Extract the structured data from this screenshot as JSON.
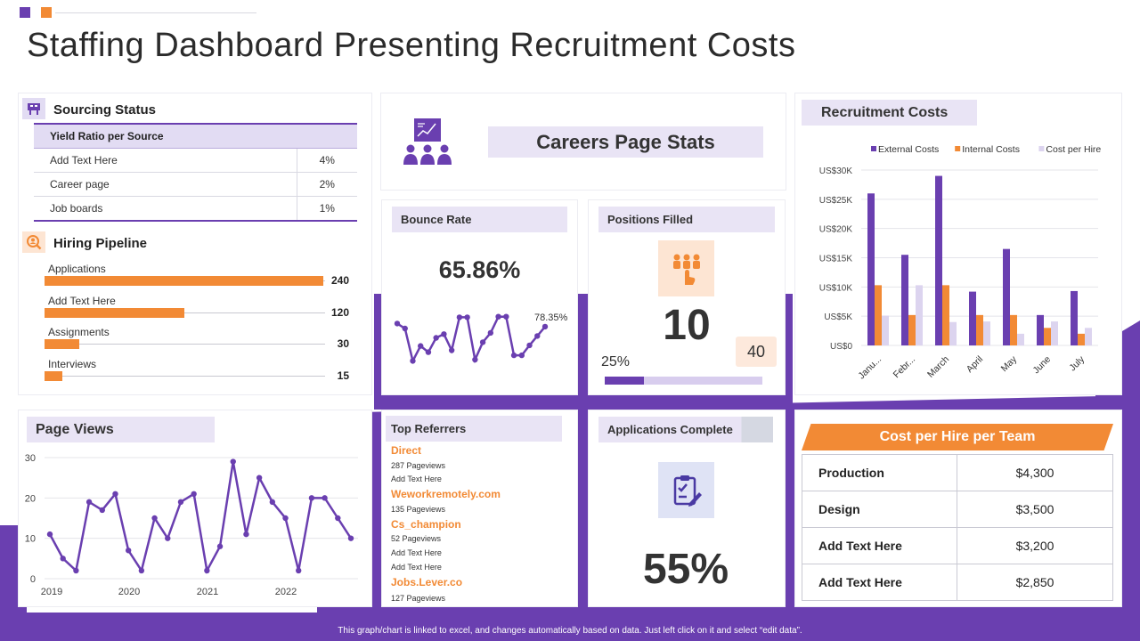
{
  "title": "Staffing Dashboard Presenting Recruitment Costs",
  "colors": {
    "purple": "#6a3fb0",
    "orange": "#f28a35",
    "lavender": "#e9e4f5",
    "light_purple": "#d8cdee"
  },
  "sourcing": {
    "heading": "Sourcing Status",
    "icon": "sourcing-icon",
    "table_header": "Yield Ratio per Source",
    "rows": [
      {
        "source": "Add Text Here",
        "ratio": "4%"
      },
      {
        "source": "Career page",
        "ratio": "2%"
      },
      {
        "source": "Job boards",
        "ratio": "1%"
      }
    ]
  },
  "pipeline": {
    "heading": "Hiring Pipeline",
    "icon": "search-user-icon",
    "max": 240,
    "rows": [
      {
        "label": "Applications",
        "value": 240
      },
      {
        "label": "Add Text Here",
        "value": 120
      },
      {
        "label": "Assignments",
        "value": 30
      },
      {
        "label": "Interviews",
        "value": 15
      }
    ]
  },
  "careers": {
    "heading": "Careers Page Stats",
    "icon": "presentation-audience-icon"
  },
  "bounce_rate": {
    "heading": "Bounce Rate",
    "value": "65.86%",
    "sparkline_label": "78.35%",
    "sparkline": [
      0.78,
      0.7,
      0.18,
      0.42,
      0.32,
      0.55,
      0.61,
      0.35,
      0.88,
      0.88,
      0.2,
      0.48,
      0.63,
      0.89,
      0.89,
      0.27,
      0.27,
      0.43,
      0.58,
      0.73
    ]
  },
  "positions_filled": {
    "heading": "Positions Filled",
    "icon": "team-click-icon",
    "value": "10",
    "progress_label": "25%",
    "progress": 0.25,
    "target": "40"
  },
  "recruitment_costs": {
    "heading": "Recruitment Costs"
  },
  "page_views": {
    "heading": "Page Views"
  },
  "top_referrers": {
    "heading": "Top Referrers",
    "items": [
      {
        "name": "Direct",
        "lines": [
          "287 Pageviews",
          "Add Text Here"
        ]
      },
      {
        "name": "Weworkremotely.com",
        "lines": [
          "135 Pageviews"
        ]
      },
      {
        "name": "Cs_champion",
        "lines": [
          "52 Pageviews",
          "Add Text Here",
          "Add Text Here"
        ]
      },
      {
        "name": "Jobs.Lever.co",
        "lines": [
          "127 Pageviews"
        ]
      }
    ]
  },
  "applications_complete": {
    "heading": "Applications Complete",
    "icon": "clipboard-edit-icon",
    "value": "55%"
  },
  "cost_per_hire": {
    "heading": "Cost per Hire per Team",
    "rows": [
      {
        "team": "Production",
        "amount": "$4,300"
      },
      {
        "team": "Design",
        "amount": "$3,500"
      },
      {
        "team": "Add Text Here",
        "amount": "$3,200"
      },
      {
        "team": "Add Text Here",
        "amount": "$2,850"
      }
    ]
  },
  "footer": "This graph/chart is linked to excel, and changes automatically based on data. Just left click on it and select “edit data”.",
  "chart_data": [
    {
      "type": "bar",
      "categories": [
        "Janu...",
        "Febr...",
        "March",
        "April",
        "May",
        "June",
        "July"
      ],
      "series": [
        {
          "name": "External Costs",
          "color": "#6a3fb0",
          "values": [
            26000,
            15500,
            29000,
            9200,
            16500,
            5200,
            9300
          ]
        },
        {
          "name": "Internal Costs",
          "color": "#f28a35",
          "values": [
            10300,
            5200,
            10300,
            5200,
            5200,
            3000,
            2000
          ]
        },
        {
          "name": "Cost per Hire",
          "color": "#dcd4ef",
          "values": [
            5100,
            10300,
            4000,
            4100,
            2000,
            4100,
            3000
          ]
        }
      ],
      "yticks": [
        "US$0",
        "US$5K",
        "US$10K",
        "US$15K",
        "US$20K",
        "US$25K",
        "US$30K"
      ],
      "ylim": [
        0,
        30000
      ],
      "legend": "top"
    },
    {
      "type": "line",
      "x_ticks": [
        "2019",
        "2020",
        "2021",
        "2022"
      ],
      "y_ticks": [
        "0",
        "10",
        "20",
        "30"
      ],
      "ylim": [
        0,
        30
      ],
      "values": [
        11,
        5,
        2,
        19,
        17,
        21,
        7,
        2,
        15,
        10,
        19,
        21,
        2,
        8,
        29,
        11,
        25,
        19,
        15,
        2,
        20,
        20,
        15,
        10
      ]
    }
  ]
}
